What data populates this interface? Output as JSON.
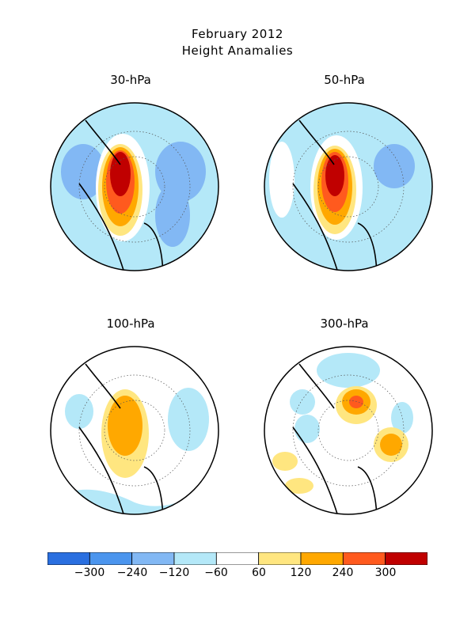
{
  "figure": {
    "title_line1": "February 2012",
    "title_line2": "Height Anamalies"
  },
  "panels": [
    {
      "label": "30-hPa"
    },
    {
      "label": "50-hPa"
    },
    {
      "label": "100-hPa"
    },
    {
      "label": "300-hPa"
    }
  ],
  "colorbar": {
    "colors": [
      "#2a6fe0",
      "#4b95ee",
      "#82b8f4",
      "#b4e8f8",
      "#ffffff",
      "#ffe680",
      "#ffa800",
      "#ff5a1e",
      "#c00000"
    ],
    "tick_labels": [
      "-300",
      "-240",
      "-120",
      "-60",
      "60",
      "120",
      "240",
      "300"
    ]
  },
  "colors": {
    "land_outline": "#000000",
    "grid": "#555555"
  }
}
